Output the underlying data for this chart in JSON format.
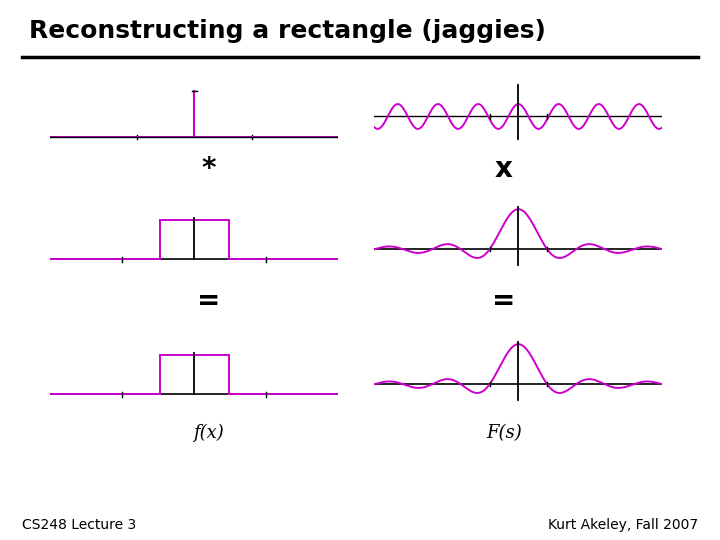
{
  "title": "Reconstructing a rectangle (jaggies)",
  "title_fontsize": 18,
  "title_fontweight": "bold",
  "footer_left": "CS248 Lecture 3",
  "footer_right": "Kurt Akeley, Fall 2007",
  "footer_fontsize": 10,
  "magenta": "#CC00CC",
  "black": "#000000",
  "bg_color": "#FFFFFF",
  "operator_star": "*",
  "operator_x": "x",
  "operator_eq1": "=",
  "operator_eq2": "=",
  "label_fx": "f(x)",
  "label_Fs": "F(s)"
}
